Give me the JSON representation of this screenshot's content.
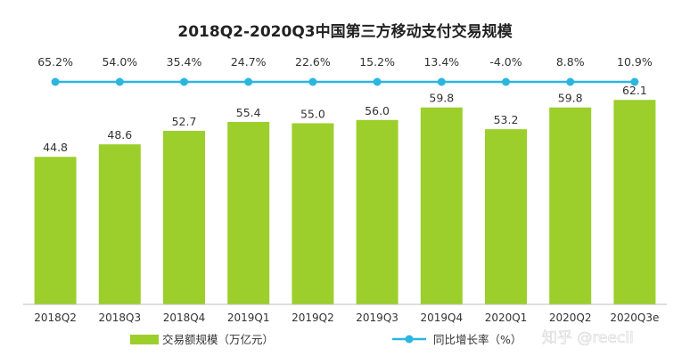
{
  "chart_data": {
    "type": "bar",
    "title": "2018Q2-2020Q3中国第三方移动支付交易规模",
    "categories": [
      "2018Q2",
      "2018Q3",
      "2018Q4",
      "2019Q1",
      "2019Q2",
      "2019Q3",
      "2019Q4",
      "2020Q1",
      "2020Q2",
      "2020Q3e"
    ],
    "series": [
      {
        "name": "交易额规模（万亿元）",
        "kind": "bar",
        "color": "#9ccf2b",
        "values": [
          44.8,
          48.6,
          52.7,
          55.4,
          55.0,
          56.0,
          59.8,
          53.2,
          59.8,
          62.1
        ],
        "labels": [
          "44.8",
          "48.6",
          "52.7",
          "55.4",
          "55.0",
          "56.0",
          "59.8",
          "53.2",
          "59.8",
          "62.1"
        ]
      },
      {
        "name": "同比增长率（%）",
        "kind": "line",
        "color": "#2ab6df",
        "values": [
          65.2,
          54.0,
          35.4,
          24.7,
          22.6,
          15.2,
          13.4,
          -4.0,
          8.8,
          10.9
        ],
        "labels": [
          "65.2%",
          "54.0%",
          "35.4%",
          "24.7%",
          "22.6%",
          "15.2%",
          "13.4%",
          "-4.0%",
          "8.8%",
          "10.9%"
        ]
      }
    ],
    "ylim": [
      0,
      70
    ],
    "grid": false,
    "legend": "bottom"
  },
  "watermark": "知乎 @reecii"
}
